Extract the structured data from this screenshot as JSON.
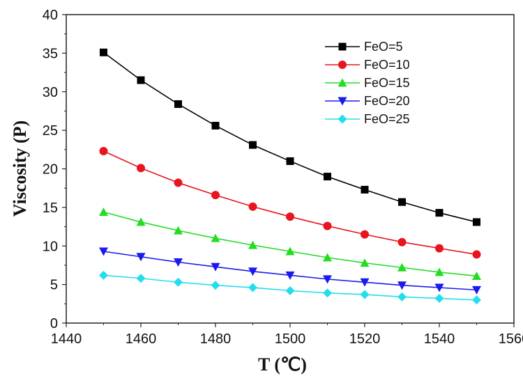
{
  "chart_data": {
    "type": "line",
    "xlabel": "T (℃)",
    "ylabel": "Viscosity (P)",
    "xlim": [
      1440,
      1560
    ],
    "ylim": [
      0,
      40
    ],
    "xticks": [
      1440,
      1460,
      1480,
      1500,
      1520,
      1540,
      1560
    ],
    "yticks": [
      0,
      5,
      10,
      15,
      20,
      25,
      30,
      35,
      40
    ],
    "x": [
      1450,
      1460,
      1470,
      1480,
      1490,
      1500,
      1510,
      1520,
      1530,
      1540,
      1550
    ],
    "grid": false,
    "legend_position": "top-right",
    "series": [
      {
        "name": "FeO=5",
        "color": "#000000",
        "marker": "square",
        "values": [
          35.1,
          31.5,
          28.4,
          25.6,
          23.1,
          21.0,
          19.0,
          17.3,
          15.7,
          14.3,
          13.1
        ]
      },
      {
        "name": "FeO=10",
        "color": "#e8141e",
        "marker": "circle",
        "values": [
          22.3,
          20.1,
          18.2,
          16.6,
          15.1,
          13.8,
          12.6,
          11.5,
          10.5,
          9.7,
          8.9
        ]
      },
      {
        "name": "FeO=15",
        "color": "#22dd22",
        "marker": "triangle-up",
        "values": [
          14.4,
          13.1,
          12.0,
          11.0,
          10.1,
          9.3,
          8.5,
          7.8,
          7.2,
          6.6,
          6.1
        ]
      },
      {
        "name": "FeO=20",
        "color": "#1a1aee",
        "marker": "triangle-down",
        "values": [
          9.3,
          8.6,
          7.9,
          7.3,
          6.7,
          6.2,
          5.7,
          5.3,
          4.9,
          4.6,
          4.3
        ]
      },
      {
        "name": "FeO=25",
        "color": "#22ddee",
        "marker": "diamond",
        "values": [
          6.2,
          5.8,
          5.3,
          4.9,
          4.6,
          4.2,
          3.9,
          3.7,
          3.4,
          3.2,
          3.0
        ]
      }
    ]
  }
}
